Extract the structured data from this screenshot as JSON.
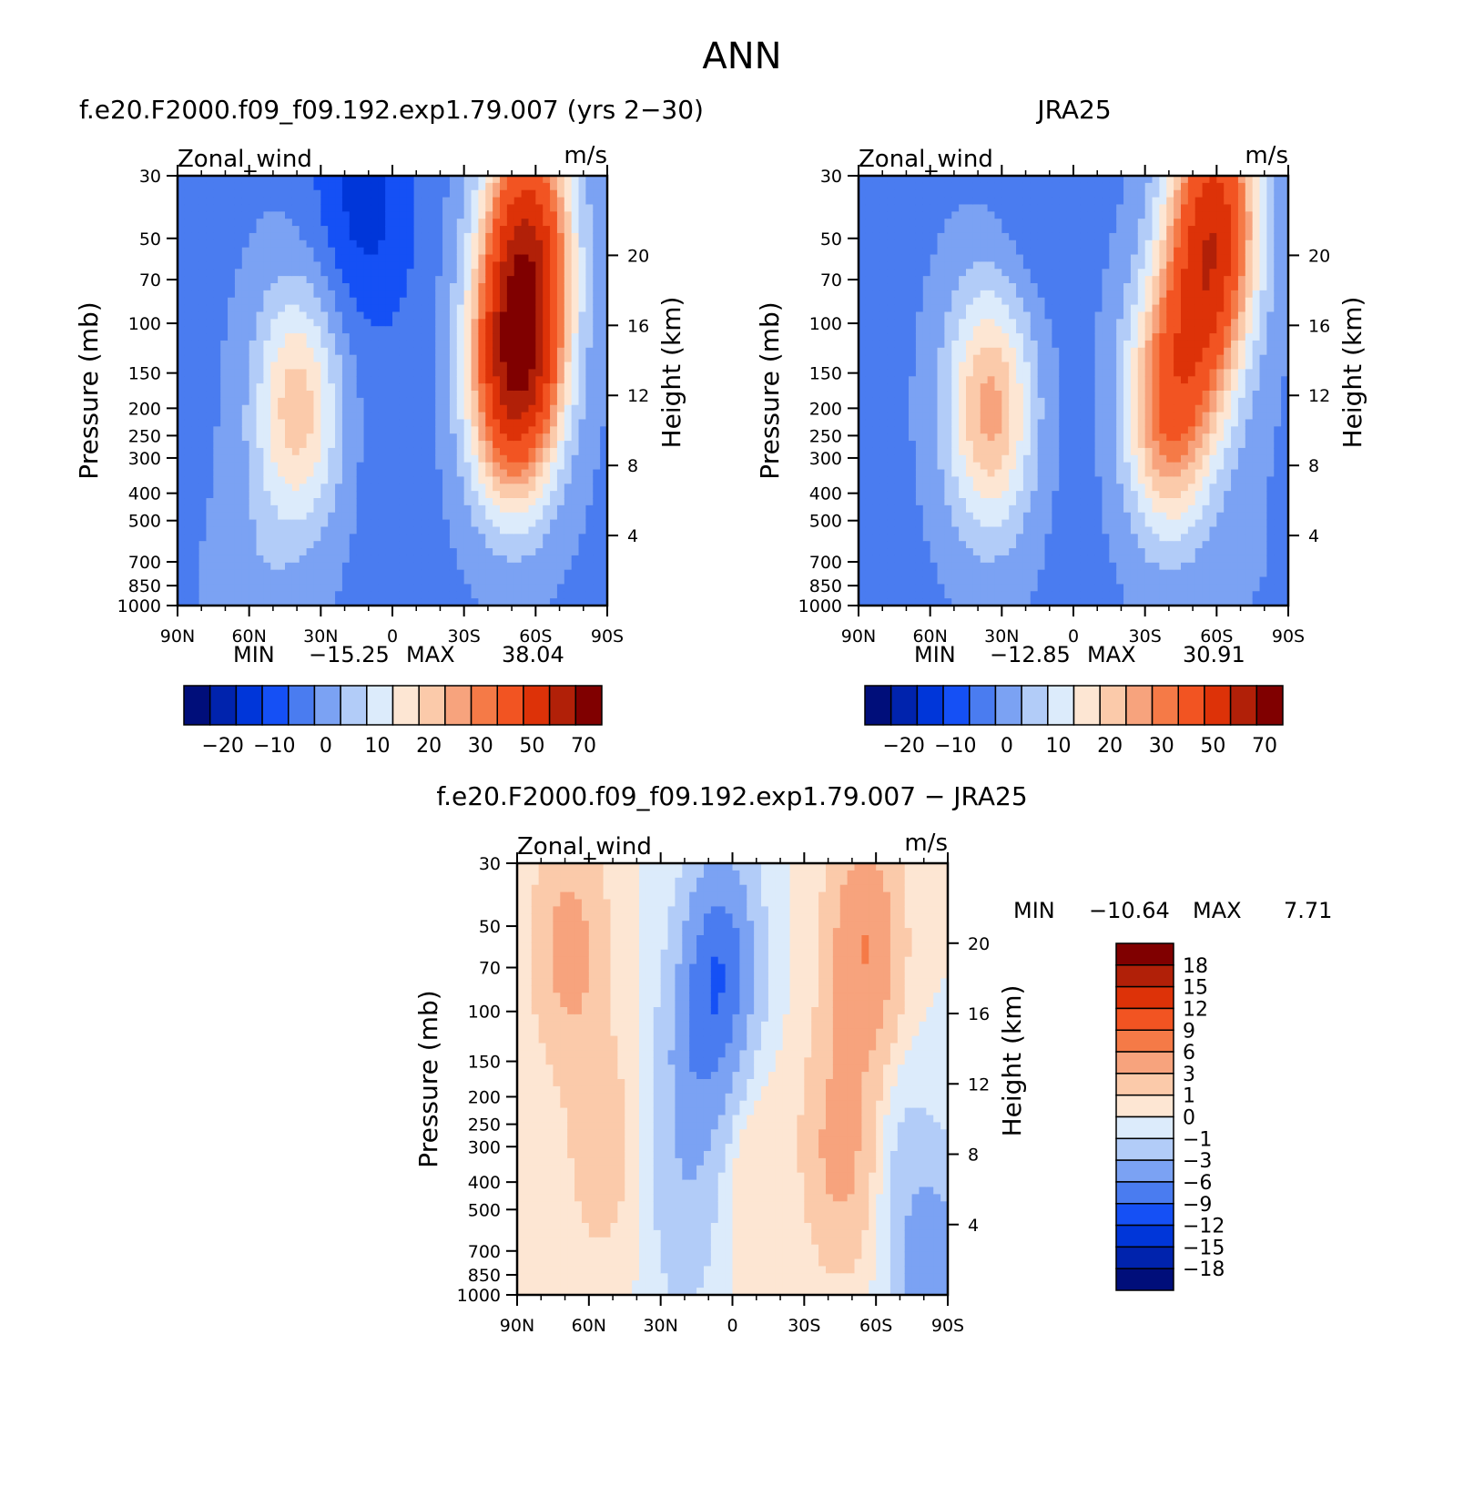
{
  "figure": {
    "title": "ANN"
  },
  "chart_data": [
    {
      "type": "heatmap",
      "id": "model",
      "title": "f.e20.F2000.f09_f09.192.exp1.79.007 (yrs 2-30)",
      "variable": "Zonal_wind",
      "units": "m/s",
      "ylabel": "Pressure (mb)",
      "ylabel_right": "Height (km)",
      "x_ticks": [
        "90N",
        "60N",
        "30N",
        "0",
        "30S",
        "60S",
        "90S"
      ],
      "y_ticks": [
        "30",
        "50",
        "70",
        "100",
        "150",
        "200",
        "250",
        "300",
        "400",
        "500",
        "700",
        "850",
        "1000"
      ],
      "height_ticks": [
        "20",
        "16",
        "12",
        "8",
        "4"
      ],
      "stats": {
        "min_label": "MIN",
        "min": "-15.25",
        "max_label": "MAX",
        "max": "38.04"
      },
      "colorbar": {
        "orientation": "horizontal",
        "labels": [
          "-20",
          "-10",
          "0",
          "10",
          "20",
          "30",
          "50",
          "70"
        ]
      },
      "field": {
        "features": [
          {
            "lat": 40,
            "p": 200,
            "value": 18
          },
          {
            "lat": -50,
            "p": 170,
            "value": 32
          },
          {
            "lat": -55,
            "p": 100,
            "value": 30
          },
          {
            "lat": -57,
            "p": 40,
            "value": 28
          },
          {
            "lat": 5,
            "p": 40,
            "value": -13
          },
          {
            "lat": 20,
            "p": 35,
            "value": -12
          },
          {
            "lat": 0,
            "p": 300,
            "value": -8
          },
          {
            "lat": -80,
            "p": 700,
            "value": -6
          },
          {
            "lat": 60,
            "p": 1000,
            "value": -2
          }
        ]
      }
    },
    {
      "type": "heatmap",
      "id": "obs",
      "title": "JRA25",
      "variable": "Zonal_wind",
      "units": "m/s",
      "ylabel": "Pressure (mb)",
      "ylabel_right": "Height (km)",
      "x_ticks": [
        "90N",
        "60N",
        "30N",
        "0",
        "30S",
        "60S",
        "90S"
      ],
      "y_ticks": [
        "30",
        "50",
        "70",
        "100",
        "150",
        "200",
        "250",
        "300",
        "400",
        "500",
        "700",
        "850",
        "1000"
      ],
      "height_ticks": [
        "20",
        "16",
        "12",
        "8",
        "4"
      ],
      "stats": {
        "min_label": "MIN",
        "min": "-12.85",
        "max_label": "MAX",
        "max": "30.91"
      },
      "colorbar": {
        "orientation": "horizontal",
        "labels": [
          "-20",
          "-10",
          "0",
          "10",
          "20",
          "30",
          "50",
          "70"
        ]
      },
      "field": {
        "features": [
          {
            "lat": 35,
            "p": 200,
            "value": 22
          },
          {
            "lat": -40,
            "p": 200,
            "value": 28
          },
          {
            "lat": -55,
            "p": 80,
            "value": 26
          },
          {
            "lat": -60,
            "p": 35,
            "value": 28
          },
          {
            "lat": 15,
            "p": 35,
            "value": -10
          },
          {
            "lat": 0,
            "p": 300,
            "value": -7
          },
          {
            "lat": -75,
            "p": 700,
            "value": -5
          }
        ]
      }
    },
    {
      "type": "heatmap",
      "id": "diff",
      "title": "f.e20.F2000.f09_f09.192.exp1.79.007 - JRA25",
      "variable": "Zonal_wind",
      "units": "m/s",
      "ylabel": "Pressure (mb)",
      "ylabel_right": "Height (km)",
      "x_ticks": [
        "90N",
        "60N",
        "30N",
        "0",
        "30S",
        "60S",
        "90S"
      ],
      "y_ticks": [
        "30",
        "50",
        "70",
        "100",
        "150",
        "200",
        "250",
        "300",
        "400",
        "500",
        "700",
        "850",
        "1000"
      ],
      "height_ticks": [
        "20",
        "16",
        "12",
        "8",
        "4"
      ],
      "stats": {
        "min_label": "MIN",
        "min": "-10.64",
        "max_label": "MAX",
        "max": "7.71"
      },
      "colorbar": {
        "orientation": "vertical",
        "labels": [
          "18",
          "15",
          "12",
          "9",
          "6",
          "3",
          "1",
          "0",
          "-1",
          "-3",
          "-6",
          "-9",
          "-12",
          "-15",
          "-18"
        ]
      },
      "field": {
        "features": [
          {
            "lat": 68,
            "p": 60,
            "value": 4
          },
          {
            "lat": 55,
            "p": 300,
            "value": 2
          },
          {
            "lat": -55,
            "p": 60,
            "value": 6
          },
          {
            "lat": -45,
            "p": 300,
            "value": 4
          },
          {
            "lat": 5,
            "p": 70,
            "value": -8
          },
          {
            "lat": 15,
            "p": 150,
            "value": -4
          },
          {
            "lat": 20,
            "p": 500,
            "value": -2
          },
          {
            "lat": -5,
            "p": 300,
            "value": 1
          },
          {
            "lat": -83,
            "p": 850,
            "value": -5
          },
          {
            "lat": -70,
            "p": 300,
            "value": -1
          }
        ]
      }
    }
  ],
  "palettes": {
    "wind": [
      "#000e7a",
      "#0023ad",
      "#0036d9",
      "#1550f5",
      "#4a7cf0",
      "#7ba2f3",
      "#b2ccf8",
      "#dcebfb",
      "#fde6d3",
      "#fbcaaa",
      "#f7a37d",
      "#f57a47",
      "#f25422",
      "#dd3208",
      "#b12008",
      "#800000"
    ],
    "diff": [
      "#000e7a",
      "#0023ad",
      "#0036d9",
      "#1550f5",
      "#4a7cf0",
      "#7ba2f3",
      "#b2ccf8",
      "#dcebfb",
      "#fde6d3",
      "#fbcaaa",
      "#f7a37d",
      "#f57a47",
      "#f25422",
      "#dd3208",
      "#b12008",
      "#800000"
    ]
  }
}
